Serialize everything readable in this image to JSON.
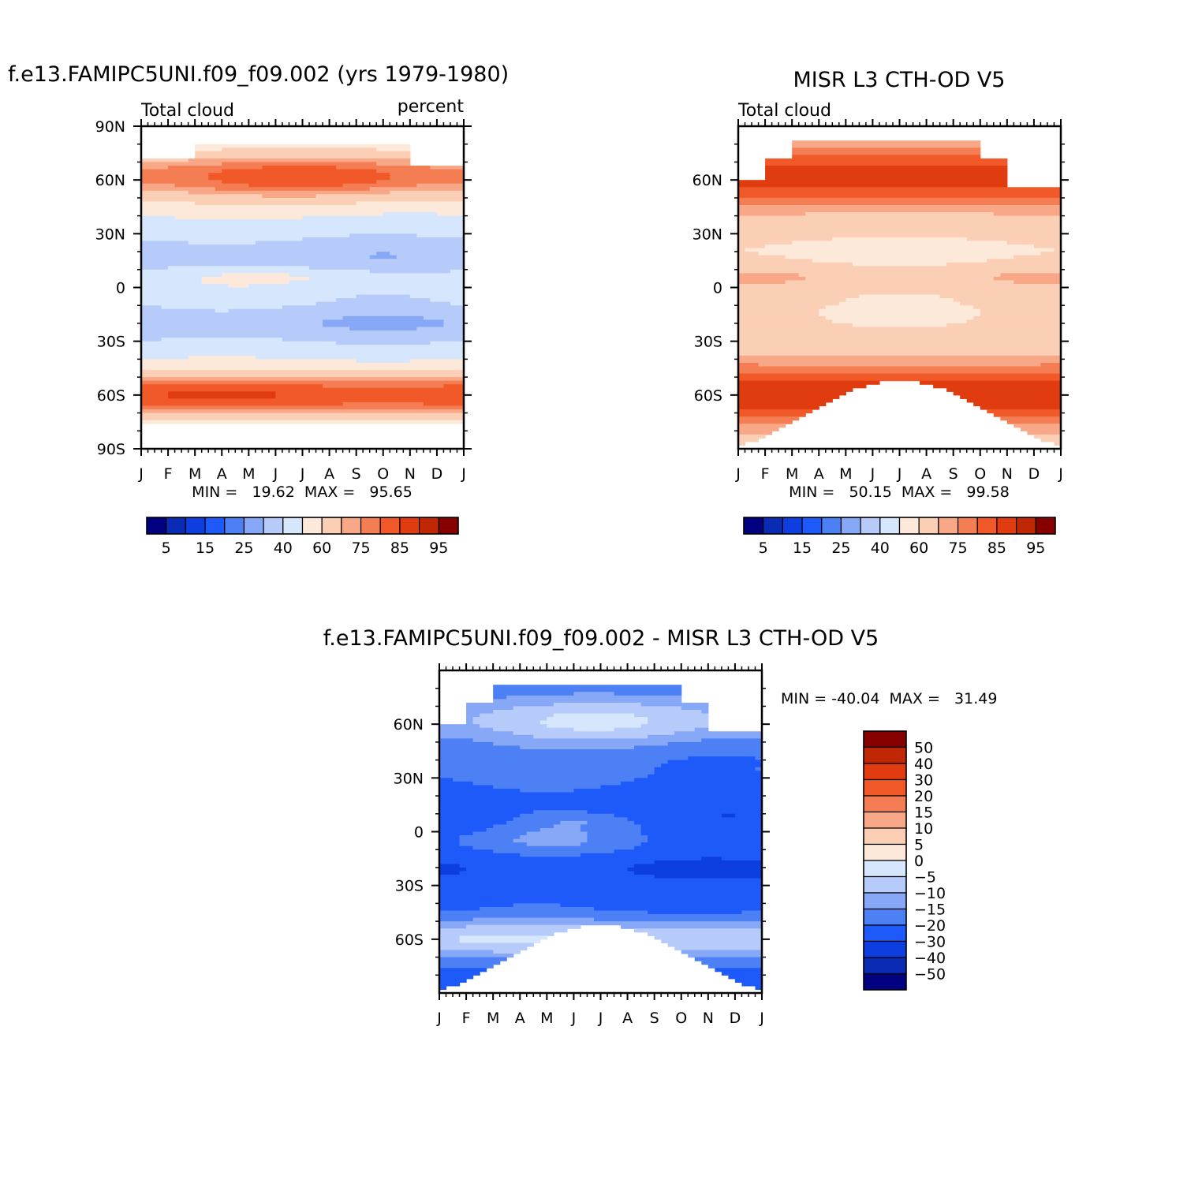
{
  "chart_data": [
    {
      "type": "heatmap",
      "title": "f.e13.FAMIPC5UNI.f09_f09.002 (yrs 1979-1980)",
      "left_label": "Total cloud",
      "right_label": "percent",
      "x": {
        "ticks": [
          "J",
          "F",
          "M",
          "A",
          "M",
          "J",
          "J",
          "A",
          "S",
          "O",
          "N",
          "D",
          "J"
        ],
        "range": [
          0,
          12
        ]
      },
      "y": {
        "ticks": [
          "90N",
          "60N",
          "30N",
          "0",
          "30S",
          "60S",
          "90S"
        ],
        "values": [
          90,
          60,
          30,
          0,
          -30,
          -60,
          -90
        ],
        "range": [
          -90,
          90
        ]
      },
      "stats": "MIN =   19.62  MAX =   95.65",
      "field": "model",
      "colorbar": {
        "orientation": "horizontal",
        "colors": [
          "#000080",
          "#0a2bb4",
          "#0d3ee0",
          "#1e5afa",
          "#4d80f5",
          "#87a8f7",
          "#b6cbfa",
          "#d6e6fd",
          "#fde9d9",
          "#fbcfb5",
          "#f8a887",
          "#f57d54",
          "#f15a28",
          "#e03c10",
          "#c02805",
          "#870000"
        ],
        "labels": [
          "5",
          "15",
          "25",
          "40",
          "60",
          "75",
          "85",
          "95"
        ]
      }
    },
    {
      "type": "heatmap",
      "title": "MISR L3 CTH-OD V5",
      "left_label": "Total cloud",
      "x": {
        "ticks": [
          "J",
          "F",
          "M",
          "A",
          "M",
          "J",
          "J",
          "A",
          "S",
          "O",
          "N",
          "D",
          "J"
        ],
        "range": [
          0,
          12
        ]
      },
      "y": {
        "ticks": [
          "60N",
          "30N",
          "0",
          "30S",
          "60S"
        ],
        "values": [
          60,
          30,
          0,
          -30,
          -60
        ],
        "range": [
          -90,
          90
        ]
      },
      "stats": "MIN =   50.15  MAX =   99.58",
      "field": "obs",
      "colorbar": {
        "orientation": "horizontal",
        "colors": [
          "#000080",
          "#0a2bb4",
          "#0d3ee0",
          "#1e5afa",
          "#4d80f5",
          "#87a8f7",
          "#b6cbfa",
          "#d6e6fd",
          "#fde9d9",
          "#fbcfb5",
          "#f8a887",
          "#f57d54",
          "#f15a28",
          "#e03c10",
          "#c02805",
          "#870000"
        ],
        "labels": [
          "5",
          "15",
          "25",
          "40",
          "60",
          "75",
          "85",
          "95"
        ]
      }
    },
    {
      "type": "heatmap",
      "title": "f.e13.FAMIPC5UNI.f09_f09.002 - MISR L3 CTH-OD V5",
      "x": {
        "ticks": [
          "J",
          "F",
          "M",
          "A",
          "M",
          "J",
          "J",
          "A",
          "S",
          "O",
          "N",
          "D",
          "J"
        ],
        "range": [
          0,
          12
        ]
      },
      "y": {
        "ticks": [
          "60N",
          "30N",
          "0",
          "30S",
          "60S"
        ],
        "values": [
          60,
          30,
          0,
          -30,
          -60
        ],
        "range": [
          -90,
          90
        ]
      },
      "stats": "MIN = -40.04  MAX =   31.49",
      "field": "diff",
      "colorbar": {
        "orientation": "vertical",
        "colors": [
          "#870000",
          "#c02805",
          "#e03c10",
          "#f15a28",
          "#f57d54",
          "#f8a887",
          "#fbcfb5",
          "#fde9d9",
          "#d6e6fd",
          "#b6cbfa",
          "#87a8f7",
          "#4d80f5",
          "#1e5afa",
          "#0d3ee0",
          "#0a2bb4",
          "#000080"
        ],
        "labels": [
          "50",
          "40",
          "30",
          "20",
          "15",
          "10",
          "5",
          "0",
          "-5",
          "-10",
          "-15",
          "-20",
          "-30",
          "-40",
          "-50"
        ]
      }
    }
  ]
}
